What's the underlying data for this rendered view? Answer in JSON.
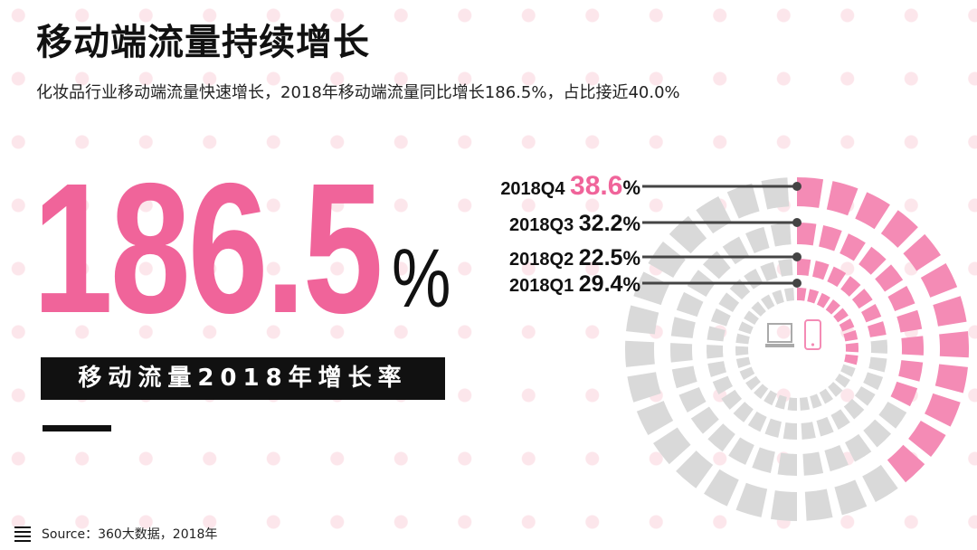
{
  "header": {
    "title": "移动端流量持续增长",
    "subtitle": "化妆品行业移动端流量快速增长，2018年移动端流量同比增长186.5%，占比接近40.0%"
  },
  "headline": {
    "value": "186.5",
    "unit": "%",
    "label": "移动流量2018年增长率"
  },
  "footer": {
    "source": "Source：360大数据，2018年",
    "icon": "menu-lines-icon"
  },
  "colors": {
    "accent": "#f0649a",
    "ring_fill": "#f48bb5",
    "ring_empty": "#d9d9d9",
    "dots": "#fce6eb"
  },
  "icons": {
    "center_left": "laptop-icon",
    "center_right": "smartphone-icon"
  },
  "chart_data": {
    "type": "radial-bar",
    "title": "",
    "categories": [
      "2018Q4",
      "2018Q3",
      "2018Q2",
      "2018Q1"
    ],
    "values": [
      38.6,
      32.2,
      22.5,
      29.4
    ],
    "labels": [
      "38.6",
      "32.2",
      "22.5",
      "29.4"
    ],
    "unit": "%",
    "max": 100,
    "highlight": "2018Q4"
  }
}
